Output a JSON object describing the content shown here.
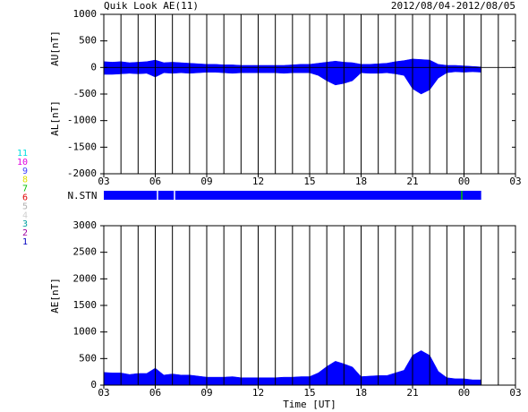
{
  "chart_data": [
    {
      "type": "area",
      "title": "Quik Look AE(11)",
      "subtitle": "2012/08/04-2012/08/05",
      "ylabel_upper": "AU[nT]",
      "ylabel_lower": "AL[nT]",
      "x": [
        3,
        3.5,
        4,
        4.5,
        5,
        5.5,
        6,
        6.5,
        7,
        7.5,
        8,
        8.5,
        9,
        9.5,
        10,
        10.5,
        11,
        11.5,
        12,
        12.5,
        13,
        13.5,
        14,
        14.5,
        15,
        15.5,
        16,
        16.5,
        17,
        17.5,
        18,
        18.5,
        19,
        19.5,
        20,
        20.5,
        21,
        21.5,
        22,
        22.5,
        23,
        23.5,
        24,
        24.5,
        25
      ],
      "series": [
        {
          "name": "AU",
          "color": "#0000ff",
          "values": [
            110,
            100,
            110,
            90,
            100,
            110,
            140,
            90,
            100,
            90,
            80,
            70,
            60,
            60,
            50,
            50,
            40,
            40,
            40,
            40,
            40,
            40,
            50,
            60,
            60,
            80,
            100,
            120,
            100,
            90,
            60,
            60,
            70,
            80,
            110,
            130,
            160,
            150,
            140,
            60,
            40,
            40,
            30,
            20,
            10
          ]
        },
        {
          "name": "AL",
          "color": "#0000ff",
          "values": [
            -130,
            -130,
            -120,
            -110,
            -120,
            -110,
            -180,
            -100,
            -110,
            -100,
            -110,
            -100,
            -90,
            -90,
            -100,
            -110,
            -100,
            -100,
            -100,
            -100,
            -100,
            -110,
            -100,
            -100,
            -100,
            -150,
            -250,
            -330,
            -300,
            -250,
            -100,
            -110,
            -110,
            -100,
            -120,
            -150,
            -400,
            -500,
            -420,
            -200,
            -100,
            -80,
            -90,
            -80,
            -90
          ]
        }
      ],
      "xlim": [
        3,
        27
      ],
      "xticks": [
        {
          "value": 3,
          "label": "03"
        },
        {
          "value": 6,
          "label": "06"
        },
        {
          "value": 9,
          "label": "09"
        },
        12,
        15,
        18,
        21,
        {
          "value": 24,
          "label": "00"
        },
        {
          "value": 27,
          "label": "03"
        }
      ],
      "x_minor_ticks": [
        4,
        5,
        7,
        8,
        10,
        11,
        13,
        14,
        16,
        17,
        19,
        20,
        22,
        23,
        25,
        26
      ],
      "ylim": [
        -2000,
        1000
      ],
      "yticks": [
        -2000,
        -1500,
        -1000,
        -500,
        0,
        500,
        1000
      ]
    },
    {
      "type": "area",
      "ylabel": "AE[nT]",
      "xlabel": "Time [UT]",
      "x": [
        3,
        3.5,
        4,
        4.5,
        5,
        5.5,
        6,
        6.5,
        7,
        7.5,
        8,
        8.5,
        9,
        9.5,
        10,
        10.5,
        11,
        11.5,
        12,
        12.5,
        13,
        13.5,
        14,
        14.5,
        15,
        15.5,
        16,
        16.5,
        17,
        17.5,
        18,
        18.5,
        19,
        19.5,
        20,
        20.5,
        21,
        21.5,
        22,
        22.5,
        23,
        23.5,
        24,
        24.5,
        25
      ],
      "series": [
        {
          "name": "AE",
          "color": "#0000ff",
          "values": [
            240,
            230,
            230,
            200,
            220,
            220,
            320,
            190,
            210,
            190,
            190,
            170,
            150,
            150,
            150,
            160,
            140,
            140,
            140,
            140,
            140,
            150,
            150,
            160,
            160,
            230,
            350,
            450,
            400,
            340,
            160,
            170,
            180,
            180,
            230,
            280,
            560,
            650,
            560,
            260,
            140,
            120,
            120,
            100,
            100
          ]
        }
      ],
      "xlim": [
        3,
        27
      ],
      "xticks": [
        {
          "value": 3,
          "label": "03"
        },
        {
          "value": 6,
          "label": "06"
        },
        {
          "value": 9,
          "label": "09"
        },
        12,
        15,
        18,
        21,
        {
          "value": 24,
          "label": "00"
        },
        {
          "value": 27,
          "label": "03"
        }
      ],
      "x_minor_ticks": [
        4,
        5,
        7,
        8,
        10,
        11,
        13,
        14,
        16,
        17,
        19,
        20,
        22,
        23,
        25,
        26
      ],
      "ylim": [
        0,
        3000
      ],
      "yticks": [
        0,
        500,
        1000,
        1500,
        2000,
        2500,
        3000
      ]
    }
  ],
  "strip": {
    "label": "N.STN",
    "color": "#0000ff",
    "legend": [
      {
        "label": "11",
        "color": "#00e0e0"
      },
      {
        "label": "10",
        "color": "#e000e0"
      },
      {
        "label": "9",
        "color": "#4040ff"
      },
      {
        "label": "8",
        "color": "#e0e000"
      },
      {
        "label": "7",
        "color": "#00c000"
      },
      {
        "label": "6",
        "color": "#e00000"
      },
      {
        "label": "5",
        "color": "#b0b0b0"
      },
      {
        "label": "4",
        "color": "#d0d0d0"
      },
      {
        "label": "3",
        "color": "#00a0a0"
      },
      {
        "label": "2",
        "color": "#a000a0"
      },
      {
        "label": "1",
        "color": "#0000c0"
      }
    ]
  }
}
